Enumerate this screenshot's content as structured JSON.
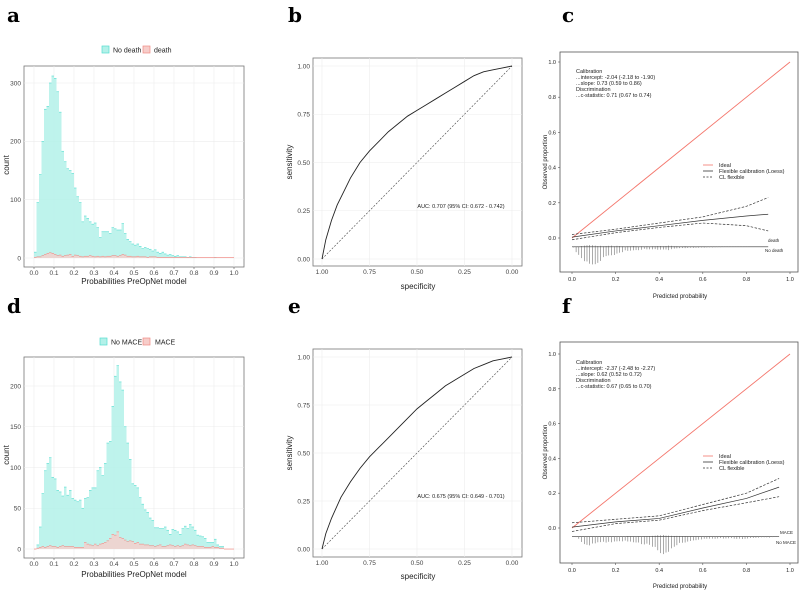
{
  "panels": {
    "a": {
      "label": "a"
    },
    "b": {
      "label": "b"
    },
    "c": {
      "label": "c"
    },
    "d": {
      "label": "d"
    },
    "e": {
      "label": "e"
    },
    "f": {
      "label": "f"
    }
  },
  "colors": {
    "no_event_fill": "#b3f1e9",
    "no_event_line": "#55ddd0",
    "event_fill": "#f7cdca",
    "event_line": "#f08a84",
    "ideal": "#f4766c",
    "curve": "#333333"
  },
  "chart_data": [
    {
      "id": "a",
      "type": "bar",
      "title": "",
      "xlabel": "Probabilities PreOpNet model",
      "ylabel": "count",
      "xlim": [
        0,
        1
      ],
      "ylim": [
        0,
        330
      ],
      "bin_width": 0.0125,
      "xticks": [
        "0.0",
        "0.1",
        "0.2",
        "0.3",
        "0.4",
        "0.5",
        "0.6",
        "0.7",
        "0.8",
        "0.9",
        "1.0"
      ],
      "yticks": [
        0,
        100,
        200,
        300
      ],
      "legend": "top",
      "series": [
        {
          "name": "No death",
          "values": [
            10,
            95,
            143,
            200,
            255,
            260,
            300,
            312,
            308,
            285,
            250,
            183,
            165,
            153,
            150,
            145,
            120,
            105,
            95,
            62,
            72,
            68,
            62,
            58,
            60,
            52,
            35,
            45,
            45,
            45,
            42,
            52,
            50,
            48,
            48,
            59,
            42,
            32,
            28,
            24,
            22,
            24,
            20,
            16,
            18,
            16,
            15,
            12,
            14,
            10,
            8,
            10,
            7,
            5,
            6,
            4,
            3,
            4,
            2,
            2,
            2,
            1,
            2,
            1,
            1,
            0,
            0,
            0,
            0,
            0,
            0,
            0,
            1,
            0,
            0,
            0,
            0,
            0,
            0,
            0
          ]
        },
        {
          "name": "death",
          "values": [
            1,
            2,
            2,
            4,
            6,
            8,
            9,
            8,
            6,
            4,
            5,
            3,
            4,
            5,
            6,
            3,
            5,
            4,
            3,
            2,
            3,
            3,
            4,
            3,
            2,
            3,
            2,
            3,
            2,
            3,
            3,
            4,
            4,
            3,
            4,
            6,
            5,
            3,
            3,
            2,
            2,
            3,
            2,
            2,
            2,
            1,
            2,
            2,
            2,
            1,
            1,
            1,
            1,
            1,
            1,
            1,
            1,
            1,
            1,
            1,
            1,
            1,
            1,
            1,
            1,
            1,
            1,
            1,
            1,
            1,
            1,
            1,
            1,
            1,
            1,
            1,
            1,
            1,
            1,
            1
          ]
        }
      ]
    },
    {
      "id": "b",
      "type": "line",
      "xlabel": "specificity",
      "ylabel": "sensitivity",
      "xlim": [
        1,
        0
      ],
      "ylim": [
        0,
        1
      ],
      "xticks": [
        "1.00",
        "0.75",
        "0.50",
        "0.25",
        "0.00"
      ],
      "yticks": [
        "0.00",
        "0.25",
        "0.50",
        "0.75",
        "1.00"
      ],
      "annotation": "AUC: 0.707 (95% CI: 0.672 - 0.742)",
      "specificity": [
        1,
        0.98,
        0.95,
        0.92,
        0.88,
        0.85,
        0.8,
        0.75,
        0.7,
        0.65,
        0.6,
        0.55,
        0.5,
        0.45,
        0.4,
        0.35,
        0.3,
        0.25,
        0.2,
        0.15,
        0.1,
        0.05,
        0
      ],
      "sensitivity": [
        0,
        0.1,
        0.2,
        0.28,
        0.36,
        0.42,
        0.5,
        0.56,
        0.61,
        0.66,
        0.7,
        0.74,
        0.77,
        0.8,
        0.83,
        0.86,
        0.89,
        0.92,
        0.95,
        0.97,
        0.98,
        0.99,
        1
      ]
    },
    {
      "id": "c",
      "type": "line",
      "xlabel": "Predicted probability",
      "ylabel": "Observed proportion",
      "xlim": [
        0,
        1
      ],
      "ylim": [
        -0.17,
        1.02
      ],
      "xticks": [
        "0.0",
        "0.2",
        "0.4",
        "0.6",
        "0.8",
        "1.0"
      ],
      "yticks": [
        "0.0",
        "0.2",
        "0.4",
        "0.6",
        "0.8",
        "1.0"
      ],
      "stats": [
        "Calibration",
        "...intercept: -2.04 (-2.18 to -1.90)",
        "...slope: 0.73 (0.59 to 0.86)",
        "Discrimination",
        "...c-statistic: 0.71 (0.67 to 0.74)"
      ],
      "legend": [
        "Ideal",
        "Flexible calibration (Loess)",
        "CL flexible"
      ],
      "event_label": "death",
      "no_event_label": "No death",
      "x": [
        0,
        0.2,
        0.4,
        0.6,
        0.8,
        0.9
      ],
      "flexible": [
        0.005,
        0.04,
        0.07,
        0.1,
        0.125,
        0.135
      ],
      "cl_upper": [
        0.02,
        0.05,
        0.085,
        0.12,
        0.18,
        0.23
      ],
      "cl_lower": [
        -0.01,
        0.03,
        0.06,
        0.085,
        0.07,
        0.04
      ],
      "spike_source": "a"
    },
    {
      "id": "d",
      "type": "bar",
      "xlabel": "Probabilities PreOpNet model",
      "ylabel": "count",
      "xlim": [
        0,
        1
      ],
      "ylim": [
        0,
        235
      ],
      "bin_width": 0.0125,
      "xticks": [
        "0.0",
        "0.1",
        "0.2",
        "0.3",
        "0.4",
        "0.5",
        "0.6",
        "0.7",
        "0.8",
        "0.9",
        "1.0"
      ],
      "yticks": [
        0,
        50,
        100,
        150,
        200
      ],
      "legend": "top",
      "series": [
        {
          "name": "No MACE",
          "values": [
            0,
            5,
            27,
            68,
            96,
            105,
            112,
            88,
            86,
            72,
            70,
            65,
            76,
            66,
            72,
            62,
            60,
            58,
            60,
            50,
            62,
            63,
            72,
            75,
            75,
            96,
            100,
            90,
            105,
            130,
            132,
            175,
            212,
            225,
            205,
            195,
            150,
            130,
            110,
            80,
            78,
            75,
            63,
            55,
            48,
            45,
            38,
            35,
            26,
            26,
            25,
            25,
            27,
            23,
            18,
            24,
            23,
            21,
            18,
            25,
            28,
            25,
            30,
            27,
            23,
            17,
            16,
            15,
            13,
            8,
            8,
            8,
            12,
            5,
            3,
            3,
            0,
            0,
            0,
            0
          ]
        },
        {
          "name": "MACE",
          "values": [
            0,
            1,
            2,
            3,
            2,
            3,
            4,
            3,
            3,
            2,
            3,
            4,
            3,
            3,
            3,
            3,
            2,
            2,
            2,
            2,
            8,
            6,
            5,
            4,
            6,
            4,
            6,
            7,
            8,
            10,
            13,
            18,
            17,
            21,
            14,
            13,
            11,
            9,
            10,
            9,
            7,
            8,
            6,
            6,
            5,
            5,
            4,
            4,
            3,
            4,
            5,
            3,
            3,
            4,
            5,
            4,
            3,
            4,
            3,
            4,
            6,
            5,
            4,
            5,
            4,
            3,
            3,
            3,
            2,
            2,
            2,
            3,
            2,
            2,
            1,
            1,
            0,
            0,
            0,
            0
          ]
        }
      ]
    },
    {
      "id": "e",
      "type": "line",
      "xlabel": "specificity",
      "ylabel": "sensitivity",
      "xlim": [
        1,
        0
      ],
      "ylim": [
        0,
        1
      ],
      "xticks": [
        "1.00",
        "0.75",
        "0.50",
        "0.25",
        "0.00"
      ],
      "yticks": [
        "0.00",
        "0.25",
        "0.50",
        "0.75",
        "1.00"
      ],
      "annotation": "AUC: 0.675 (95% CI: 0.649 - 0.701)",
      "specificity": [
        1,
        0.98,
        0.95,
        0.9,
        0.85,
        0.8,
        0.75,
        0.7,
        0.65,
        0.6,
        0.55,
        0.5,
        0.45,
        0.4,
        0.35,
        0.3,
        0.25,
        0.2,
        0.15,
        0.1,
        0.05,
        0
      ],
      "sensitivity": [
        0,
        0.08,
        0.16,
        0.27,
        0.35,
        0.42,
        0.48,
        0.53,
        0.58,
        0.63,
        0.68,
        0.73,
        0.77,
        0.81,
        0.85,
        0.88,
        0.91,
        0.94,
        0.96,
        0.98,
        0.99,
        1
      ]
    },
    {
      "id": "f",
      "type": "line",
      "xlabel": "Predicted probability",
      "ylabel": "Observed proportion",
      "xlim": [
        0,
        1
      ],
      "ylim": [
        -0.17,
        1.02
      ],
      "xticks": [
        "0.0",
        "0.2",
        "0.4",
        "0.6",
        "0.8",
        "1.0"
      ],
      "yticks": [
        "0.0",
        "0.2",
        "0.4",
        "0.6",
        "0.8",
        "1.0"
      ],
      "stats": [
        "Calibration",
        "...intercept: -2.37 (-2.48 to -2.27)",
        "...slope: 0.62 (0.52 to 0.72)",
        "Discrimination",
        "...c-statistic: 0.67 (0.65 to 0.70)"
      ],
      "legend": [
        "Ideal",
        "Flexible calibration (Loess)",
        "CL flexible"
      ],
      "event_label": "MACE",
      "no_event_label": "No MACE",
      "x": [
        0,
        0.2,
        0.4,
        0.6,
        0.8,
        0.95
      ],
      "flexible": [
        0.005,
        0.035,
        0.055,
        0.115,
        0.17,
        0.235
      ],
      "cl_upper": [
        0.03,
        0.05,
        0.07,
        0.135,
        0.2,
        0.285
      ],
      "cl_lower": [
        -0.02,
        0.025,
        0.045,
        0.1,
        0.145,
        0.18
      ],
      "spike_source": "d"
    }
  ]
}
